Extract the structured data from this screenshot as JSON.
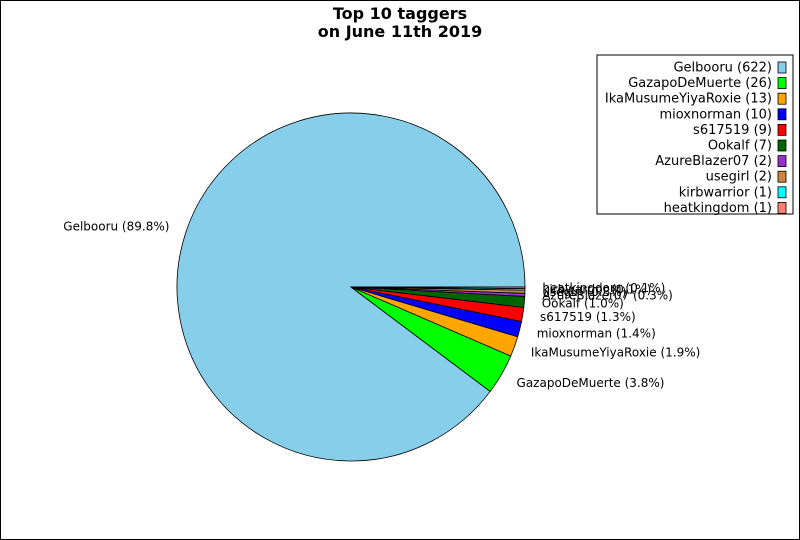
{
  "chart_data": {
    "type": "pie",
    "title_line1": "Top 10 taggers",
    "title_line2": "on June 11th 2019",
    "legend_position": "top-right",
    "slices": [
      {
        "name": "Gelbooru",
        "value": 622,
        "pct_label": "Gelbooru (89.8%)",
        "legend_label": "Gelbooru (622)",
        "color": "#87ceeb"
      },
      {
        "name": "GazapoDeMuerte",
        "value": 26,
        "pct_label": "GazapoDeMuerte (3.8%)",
        "legend_label": "GazapoDeMuerte (26)",
        "color": "#00ff00"
      },
      {
        "name": "IkaMusumeYiyaRoxie",
        "value": 13,
        "pct_label": "IkaMusumeYiyaRoxie (1.9%)",
        "legend_label": "IkaMusumeYiyaRoxie (13)",
        "color": "#ffa500"
      },
      {
        "name": "mioxnorman",
        "value": 10,
        "pct_label": "mioxnorman (1.4%)",
        "legend_label": "mioxnorman (10)",
        "color": "#0000ff"
      },
      {
        "name": "s617519",
        "value": 9,
        "pct_label": "s617519 (1.3%)",
        "legend_label": "s617519 (9)",
        "color": "#ff0000"
      },
      {
        "name": "Ookalf",
        "value": 7,
        "pct_label": "Ookalf (1.0%)",
        "legend_label": "Ookalf (7)",
        "color": "#006400"
      },
      {
        "name": "AzureBlazer07",
        "value": 2,
        "pct_label": "AzureBlazer07 (0.3%)",
        "legend_label": "AzureBlazer07 (2)",
        "color": "#9932cc"
      },
      {
        "name": "usegirl",
        "value": 2,
        "pct_label": "usegirl (0.3%)",
        "legend_label": "usegirl (2)",
        "color": "#cd853f"
      },
      {
        "name": "kirbwarrior",
        "value": 1,
        "pct_label": "kirbwarrior (0.1%)",
        "legend_label": "kirbwarrior (1)",
        "color": "#00ffff"
      },
      {
        "name": "heatkingdom",
        "value": 1,
        "pct_label": "heatkingdom (0.1%)",
        "legend_label": "heatkingdom (1)",
        "color": "#fa8072"
      }
    ]
  }
}
